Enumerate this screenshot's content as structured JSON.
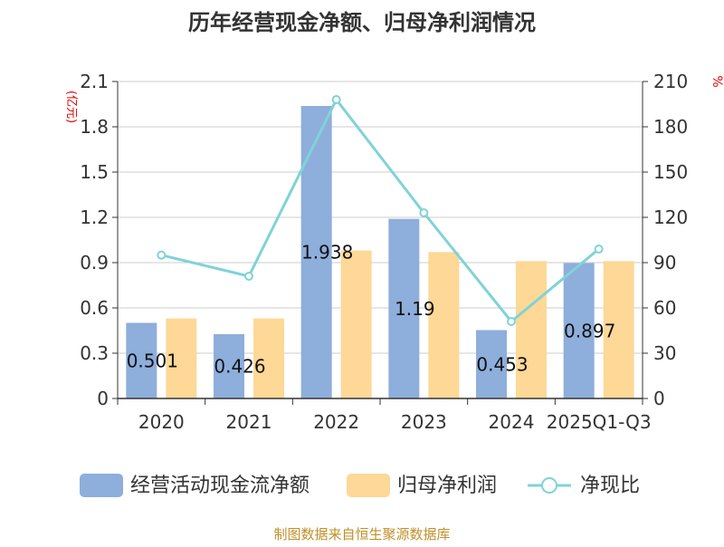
{
  "chart_data": {
    "type": "bar+line",
    "title": "历年经营现金净额、归母净利润情况",
    "categories": [
      "2020",
      "2021",
      "2022",
      "2023",
      "2024",
      "2025Q1-Q3"
    ],
    "y_left": {
      "unit_label": "(亿元)",
      "range": [
        0,
        2.1
      ],
      "ticks": [
        "0",
        "0.3",
        "0.6",
        "0.9",
        "1.2",
        "1.5",
        "1.8",
        "2.1"
      ]
    },
    "y_right": {
      "unit_label": "%",
      "range": [
        0,
        210
      ],
      "ticks": [
        "0",
        "30",
        "60",
        "90",
        "120",
        "150",
        "180",
        "210"
      ]
    },
    "series": [
      {
        "name": "经营活动现金流净额",
        "type": "bar",
        "axis": "left",
        "color": "#8eaedb",
        "values": [
          0.501,
          0.426,
          1.938,
          1.19,
          0.453,
          0.897
        ],
        "labels": [
          "0.501",
          "0.426",
          "1.938",
          "1.19",
          "0.453",
          "0.897"
        ]
      },
      {
        "name": "归母净利润",
        "type": "bar",
        "axis": "left",
        "color": "#fdd896",
        "values": [
          0.53,
          0.53,
          0.98,
          0.97,
          0.91,
          0.91
        ]
      },
      {
        "name": "净现比",
        "type": "line",
        "axis": "right",
        "color": "#7fd3d8",
        "values": [
          95,
          81,
          198,
          123,
          51,
          99
        ]
      }
    ],
    "legend_position": "bottom",
    "grid": true
  },
  "footer": {
    "source": "制图数据来自恒生聚源数据库"
  }
}
